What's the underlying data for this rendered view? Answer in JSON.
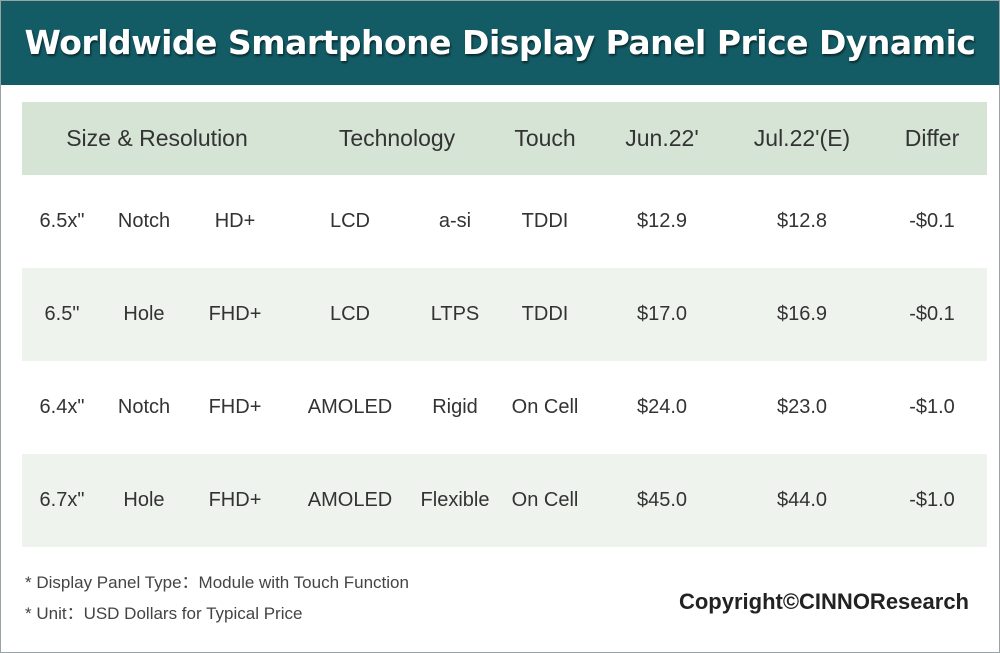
{
  "title": "Worldwide Smartphone Display Panel Price Dynamic",
  "colors": {
    "title_bar": "#135c66",
    "header_row": "#d6e4d6",
    "alt_row": "#eef3ee",
    "text": "#333333"
  },
  "chart_data": {
    "type": "table",
    "title": "Worldwide Smartphone Display Panel Price Dynamic",
    "columns": [
      "Size & Resolution",
      "Technology",
      "Touch",
      "Jun.22'",
      "Jul.22'(E)",
      "Differ"
    ],
    "rows": [
      {
        "size": "6.5x\"",
        "screen": "Notch",
        "resolution": "HD+",
        "display": "LCD",
        "backplane": "a-si",
        "touch": "TDDI",
        "jun22": "$12.9",
        "jul22e": "$12.8",
        "differ": "-$0.1"
      },
      {
        "size": "6.5\"",
        "screen": "Hole",
        "resolution": "FHD+",
        "display": "LCD",
        "backplane": "LTPS",
        "touch": "TDDI",
        "jun22": "$17.0",
        "jul22e": "$16.9",
        "differ": "-$0.1"
      },
      {
        "size": "6.4x\"",
        "screen": "Notch",
        "resolution": "FHD+",
        "display": "AMOLED",
        "backplane": "Rigid",
        "touch": "On Cell",
        "jun22": "$24.0",
        "jul22e": "$23.0",
        "differ": "-$1.0"
      },
      {
        "size": "6.7x\"",
        "screen": "Hole",
        "resolution": "FHD+",
        "display": "AMOLED",
        "backplane": "Flexible",
        "touch": "On Cell",
        "jun22": "$45.0",
        "jul22e": "$44.0",
        "differ": "-$1.0"
      }
    ]
  },
  "notes": [
    "* Display Panel Type：Module with Touch Function",
    "* Unit：USD Dollars for Typical Price"
  ],
  "copyright": "Copyright©CINNOResearch"
}
